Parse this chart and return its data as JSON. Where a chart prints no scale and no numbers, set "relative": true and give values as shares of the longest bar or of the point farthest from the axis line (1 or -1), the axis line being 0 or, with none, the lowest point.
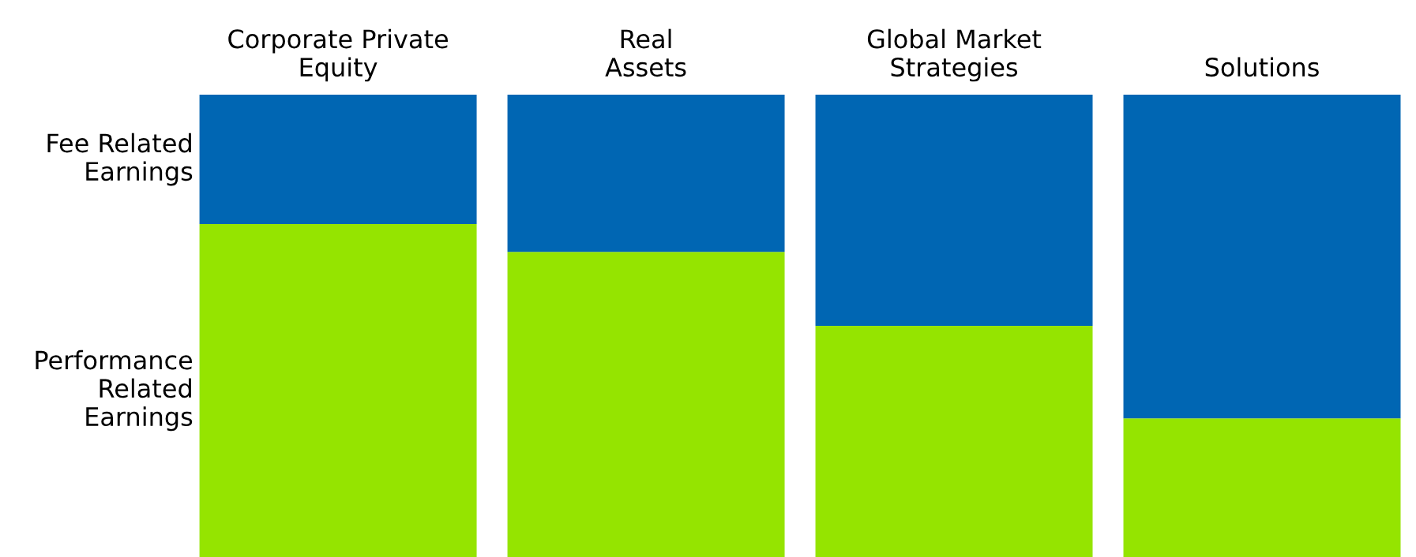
{
  "chart_data": {
    "type": "bar",
    "stacked": true,
    "relative": true,
    "legend": false,
    "categories": [
      "Corporate Private\nEquity",
      "Real\nAssets",
      "Global Market\nStrategies",
      "Solutions"
    ],
    "series": [
      {
        "name": "Performance\nRelated\nEarnings",
        "color": "#95e400",
        "values": [
          0.72,
          0.66,
          0.5,
          0.3
        ]
      },
      {
        "name": "Fee Related\nEarnings",
        "color": "#0066b3",
        "values": [
          0.28,
          0.34,
          0.5,
          0.7
        ]
      }
    ]
  }
}
